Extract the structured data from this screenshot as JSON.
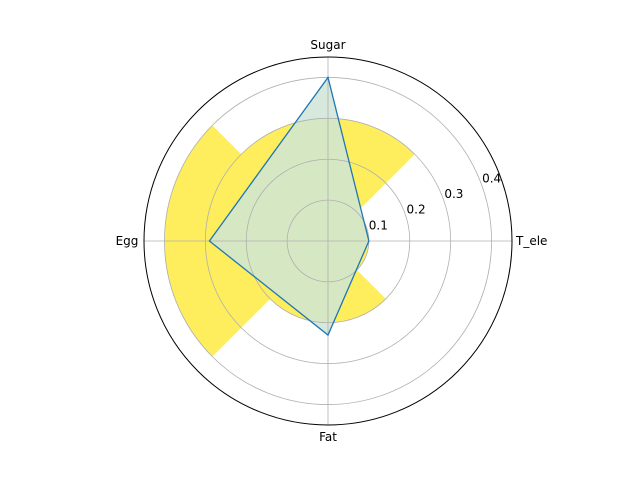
{
  "chart_data": {
    "type": "radar",
    "categories": [
      "T_ele",
      "Sugar",
      "Egg",
      "Fat"
    ],
    "series": [
      {
        "kind": "line-filled",
        "values": [
          0.1,
          0.4,
          0.29,
          0.23
        ],
        "line_color": "#1f77b4",
        "fill_color": "#cfe5d6"
      },
      {
        "kind": "bar",
        "values": [
          0.1,
          0.3,
          0.4,
          0.2
        ],
        "color": "#fde725",
        "alpha": 0.75
      }
    ],
    "r_ticks": [
      "0.1",
      "0.2",
      "0.3",
      "0.4"
    ],
    "r_tick_values": [
      0.1,
      0.2,
      0.3,
      0.4
    ],
    "rlim": [
      0,
      0.45
    ],
    "grid": true
  }
}
